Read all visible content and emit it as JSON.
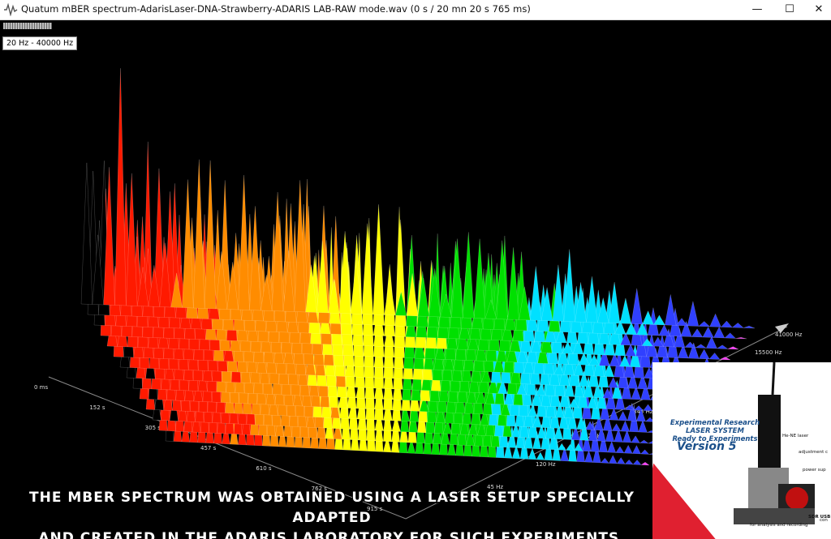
{
  "window": {
    "title": "Quatum mBER spectrum-AdarisLaser-DNA-Strawberry-ADARIS LAB-RAW mode.wav (0 s / 20 mn 20 s 765 ms)",
    "minimize_glyph": "—",
    "maximize_glyph": "☐",
    "close_glyph": "✕"
  },
  "toolbar": {
    "frequency_range": "20 Hz - 40000 Hz"
  },
  "chart_data": {
    "type": "surface-3d",
    "time_axis": [
      "0 ms",
      "152 s",
      "305 s",
      "457 s",
      "610 s",
      "762 s",
      "915 s"
    ],
    "freq_axis": [
      "45 Hz",
      "120 Hz",
      "320 Hz",
      "845 Hz",
      "15500 Hz",
      "41000 Hz"
    ],
    "colors": [
      "#ff1a00",
      "#ff8c00",
      "#ffff00",
      "#00e000",
      "#00e0ff",
      "#3040ff",
      "#ff40ff"
    ]
  },
  "caption": {
    "line1": "The mBER spectrum was obtained using a laser setup specially adapted",
    "line2": "and created in the ADARIS laboratory for such experiments."
  },
  "inset": {
    "title_l1": "Experimental Research",
    "title_l2": "LASER SYSTEM",
    "title_l3": "Ready to Experiments",
    "version": "Version 5",
    "label_laser": "He-NE laser",
    "label_adjust": "adjustment c",
    "label_power": "power sup",
    "label_cont": "con",
    "label_sdr": "SDR USB",
    "label_analysis": "for analysis and recording"
  }
}
